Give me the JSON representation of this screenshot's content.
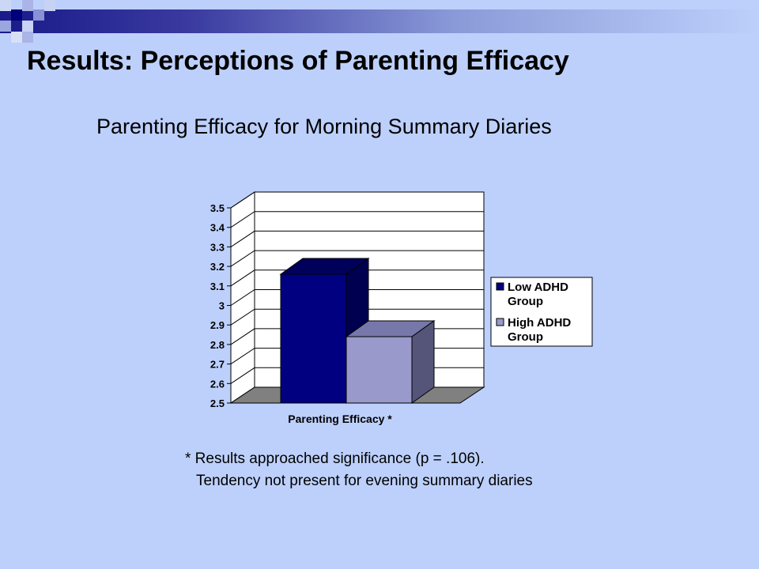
{
  "slide": {
    "title": "Results: Perceptions of Parenting Efficacy",
    "subtitle": "Parenting Efficacy for Morning Summary Diaries",
    "note_line1": "* Results approached significance (p = .106).",
    "note_line2": "Tendency not present for evening summary diaries"
  },
  "colors": {
    "background": "#bdd0fb",
    "low_adhd": "#000080",
    "high_adhd": "#9999cc",
    "floor": "#808080"
  },
  "chart_data": {
    "type": "bar",
    "categories": [
      "Parenting Efficacy *"
    ],
    "series": [
      {
        "name": "Low ADHD Group",
        "values": [
          3.16
        ]
      },
      {
        "name": "High ADHD Group",
        "values": [
          2.84
        ]
      }
    ],
    "ylim": [
      2.5,
      3.5
    ],
    "yticks": [
      "2.5",
      "2.6",
      "2.7",
      "2.8",
      "2.9",
      "3",
      "3.1",
      "3.2",
      "3.3",
      "3.4",
      "3.5"
    ],
    "legend": {
      "placement": "right",
      "entries": [
        {
          "line1": "Low ADHD",
          "line2": "Group"
        },
        {
          "line1": "High ADHD",
          "line2": "Group"
        }
      ]
    },
    "grid": true,
    "three_d": true
  }
}
